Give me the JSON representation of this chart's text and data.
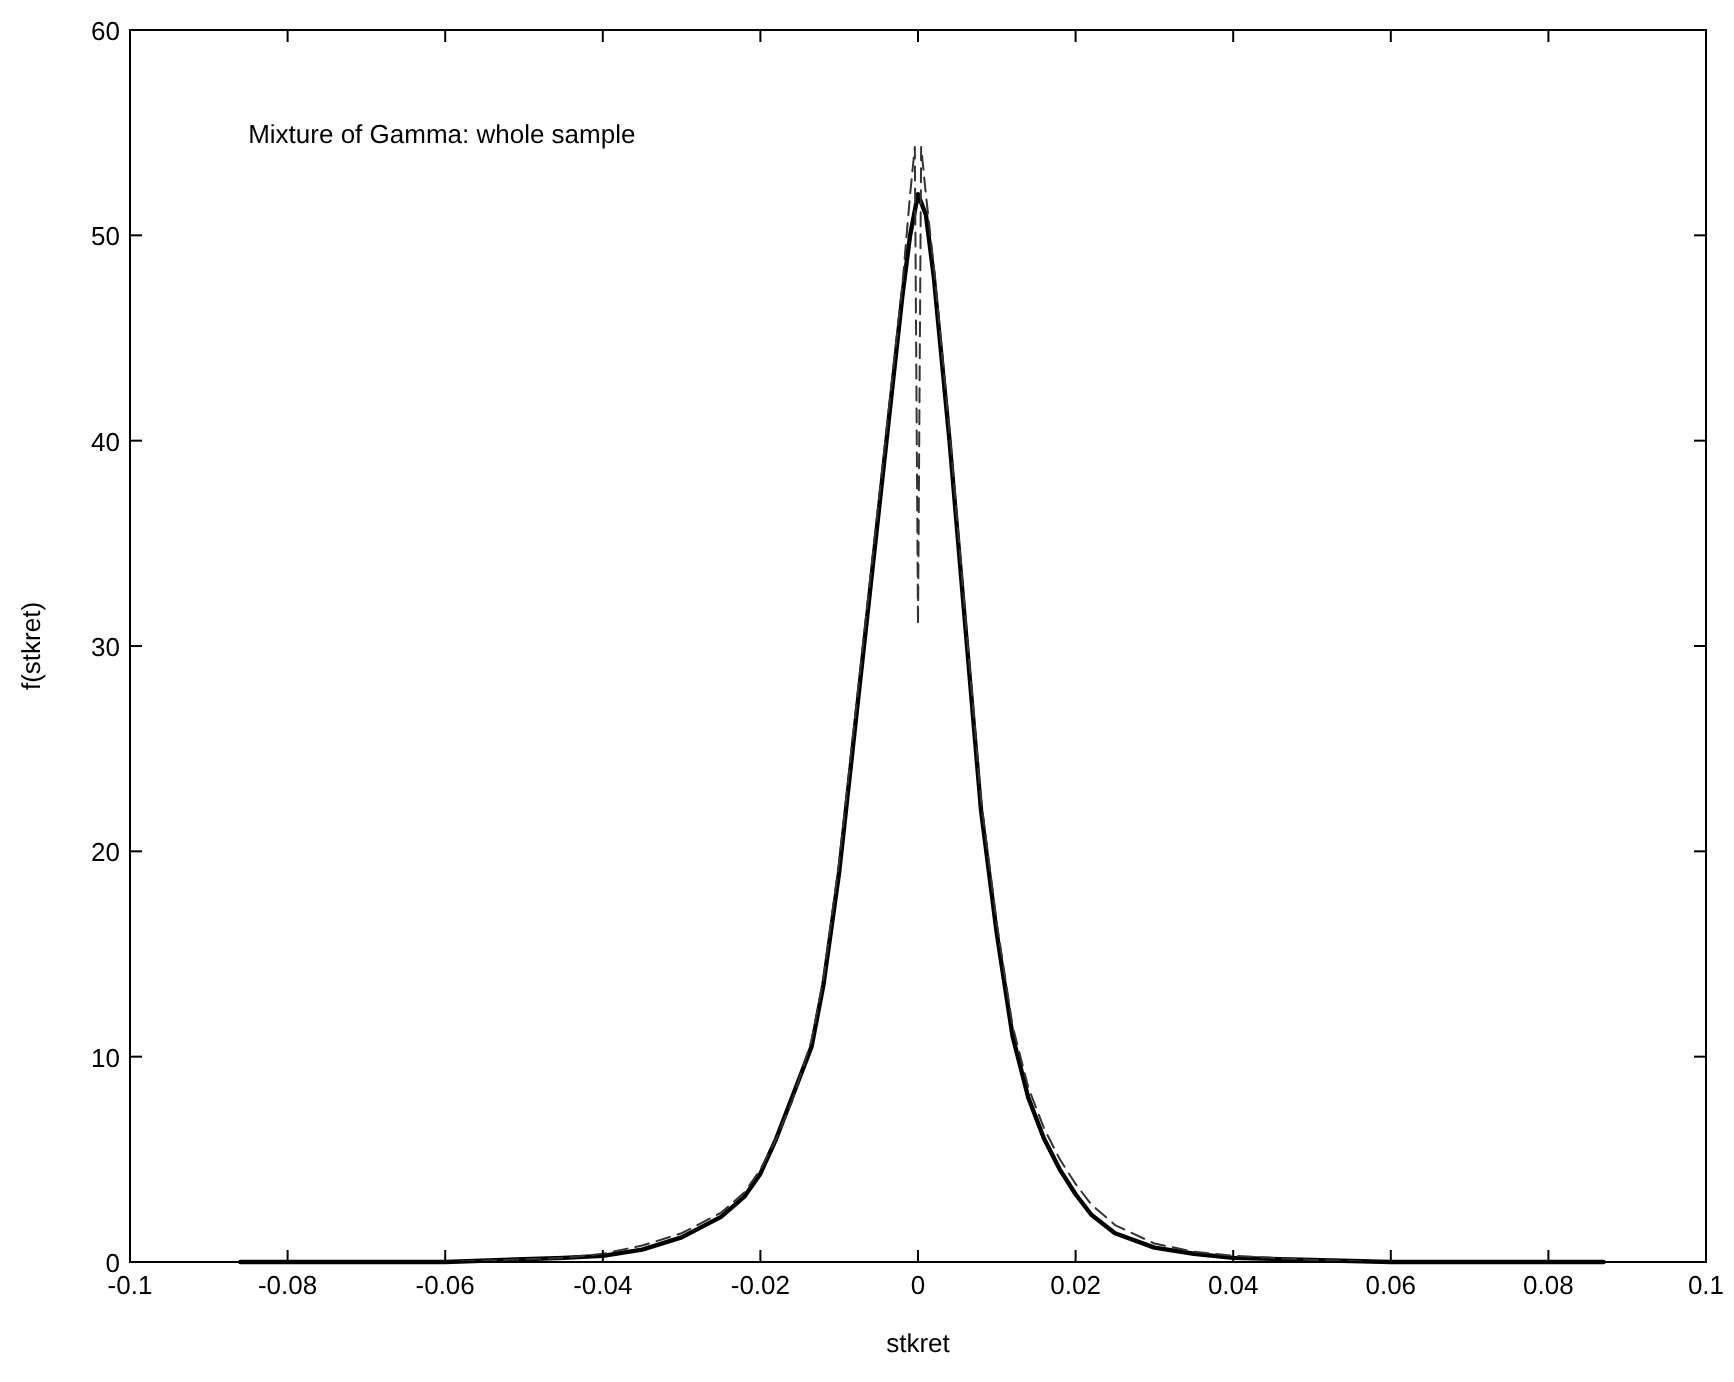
{
  "chart_data": {
    "type": "line",
    "xlabel": "stkret",
    "ylabel": "f(stkret)",
    "annotations": [
      "Mixture of Gamma: whole sample"
    ],
    "xlim": [
      -0.1,
      0.1
    ],
    "xticks": [
      -0.1,
      -0.08,
      -0.06,
      -0.04,
      -0.02,
      0,
      0.02,
      0.04,
      0.06,
      0.08,
      0.1
    ],
    "ylim": [
      0,
      60
    ],
    "yticks": [
      0,
      10,
      20,
      30,
      40,
      50,
      60
    ],
    "grid": false,
    "series": [
      {
        "color": "#000000",
        "line_style": "solid",
        "x": [
          -0.086,
          -0.06,
          -0.045,
          -0.04,
          -0.035,
          -0.03,
          -0.025,
          -0.022,
          -0.02,
          -0.018,
          -0.016,
          -0.015,
          -0.0135,
          -0.012,
          -0.01,
          -0.008,
          -0.006,
          -0.004,
          -0.002,
          -0.001,
          0,
          0.001,
          0.002,
          0.004,
          0.006,
          0.008,
          0.01,
          0.012,
          0.014,
          0.016,
          0.018,
          0.02,
          0.022,
          0.025,
          0.03,
          0.035,
          0.04,
          0.05,
          0.06,
          0.087
        ],
        "values": [
          0,
          0,
          0.2,
          0.3,
          0.6,
          1.2,
          2.2,
          3.2,
          4.3,
          6,
          8,
          9,
          10.5,
          13.5,
          19,
          26,
          33,
          40,
          47,
          50,
          52,
          51,
          48,
          40,
          31,
          22,
          16,
          11,
          8,
          6,
          4.5,
          3.3,
          2.3,
          1.4,
          0.7,
          0.4,
          0.2,
          0.1,
          0,
          0
        ]
      },
      {
        "color": "#333333",
        "line_style": "dashed",
        "x": [
          -0.086,
          -0.06,
          -0.045,
          -0.04,
          -0.035,
          -0.03,
          -0.025,
          -0.022,
          -0.02,
          -0.018,
          -0.016,
          -0.015,
          -0.0135,
          -0.012,
          -0.01,
          -0.008,
          -0.006,
          -0.004,
          -0.002,
          -0.001,
          -0.0004,
          0,
          0.0004,
          0.001,
          0.002,
          0.004,
          0.006,
          0.008,
          0.01,
          0.012,
          0.014,
          0.016,
          0.018,
          0.02,
          0.022,
          0.025,
          0.03,
          0.035,
          0.04,
          0.05,
          0.06,
          0.087
        ],
        "values": [
          0,
          0,
          0.2,
          0.4,
          0.8,
          1.4,
          2.4,
          3.4,
          4.5,
          6,
          7.8,
          9,
          10.8,
          13.8,
          19.5,
          26.5,
          33.5,
          40.5,
          47.5,
          52,
          54.3,
          31,
          54.3,
          52,
          48.5,
          40.5,
          31.5,
          22.5,
          16.5,
          11.5,
          8.5,
          6.5,
          5,
          3.8,
          2.8,
          1.8,
          0.9,
          0.5,
          0.3,
          0.1,
          0,
          0
        ]
      }
    ]
  }
}
